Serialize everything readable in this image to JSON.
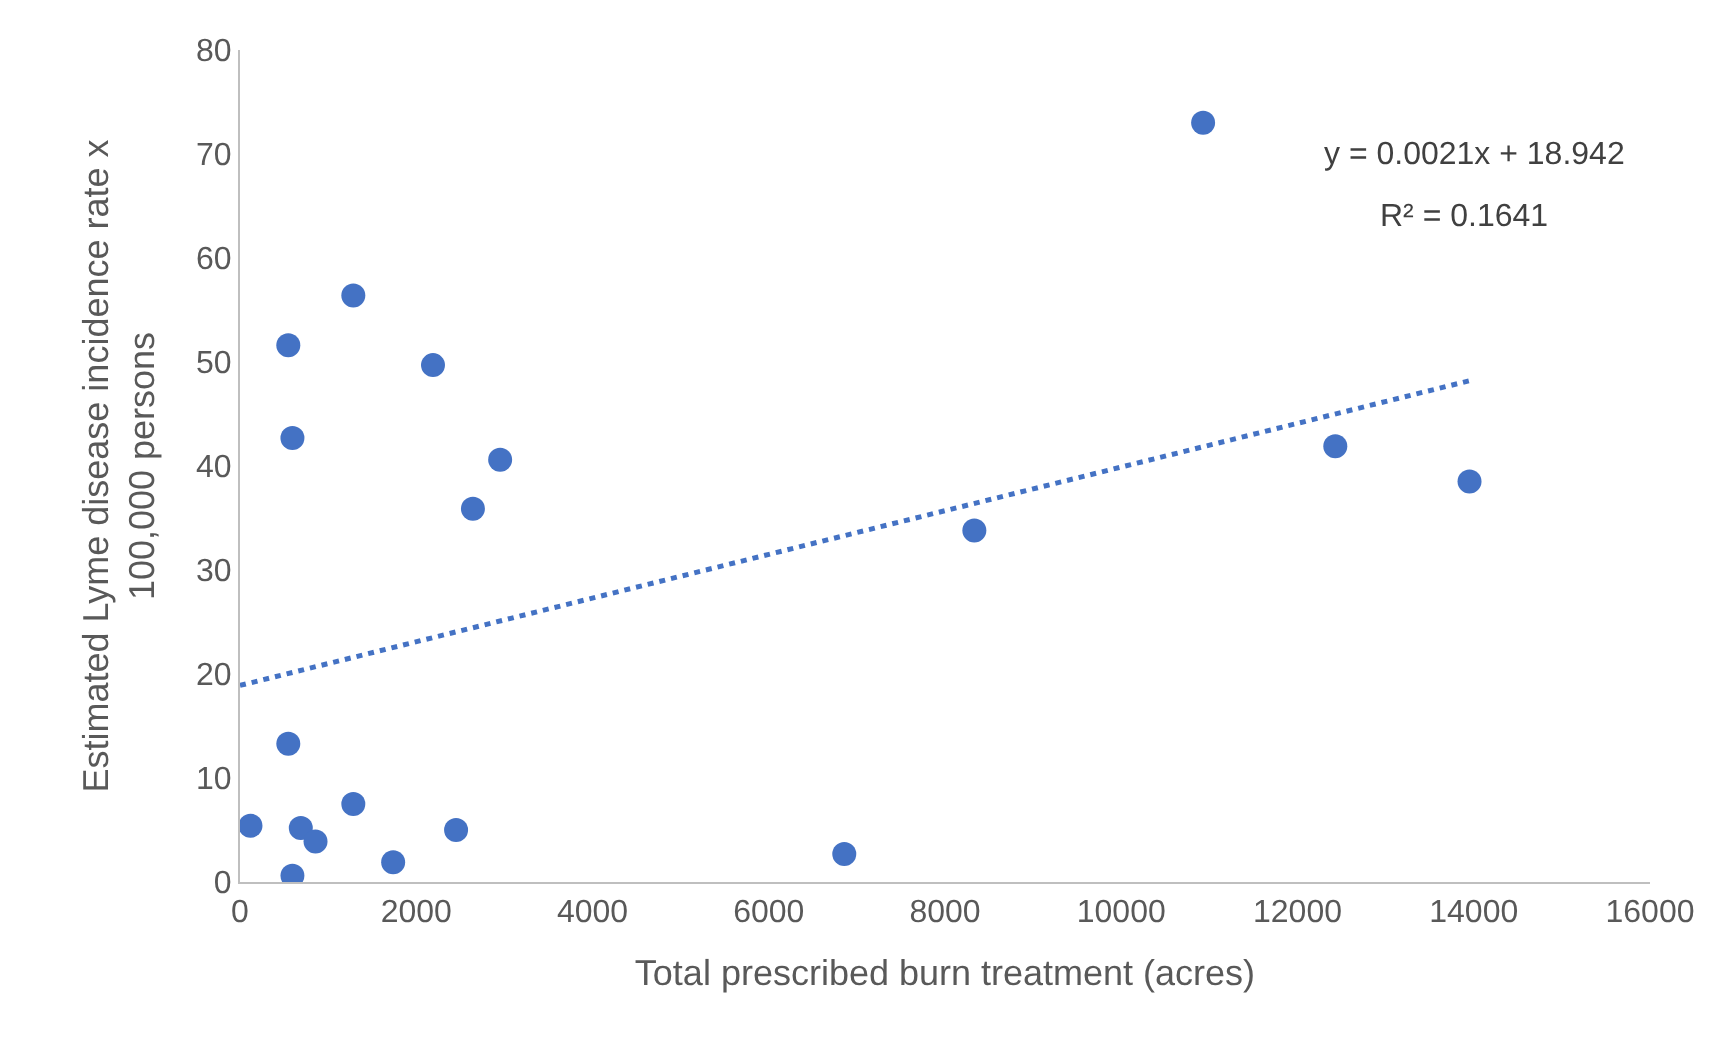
{
  "chart_data": {
    "type": "scatter",
    "xlabel": "Total prescribed burn treatment (acres)",
    "ylabel": "Estimated Lyme disease incidence rate x 100,000 persons",
    "annotations": [
      "y = 0.0021x + 18.942",
      "R² = 0.1641"
    ],
    "x": [
      119,
      595,
      548,
      595,
      548,
      690,
      857,
      1286,
      1286,
      1738,
      2190,
      2452,
      2643,
      2952,
      6857,
      8333,
      10929,
      12429,
      13952
    ],
    "series": [
      {
        "color": "#4472c4",
        "values": [
          5.4,
          0.6,
          51.6,
          42.7,
          13.3,
          5.2,
          3.9,
          56.4,
          7.5,
          1.9,
          49.7,
          5.0,
          35.9,
          40.6,
          2.7,
          33.8,
          73.0,
          41.9,
          38.5
        ]
      },
      {
        "type": "line",
        "color": "#4472c4",
        "line_style": "dotted",
        "marker": "none",
        "x": [
          0,
          13952
        ],
        "values": [
          18.9,
          48.2
        ]
      }
    ],
    "marker": "circle",
    "xlim": [
      0,
      16000
    ],
    "xticks": [
      0,
      2000,
      4000,
      6000,
      8000,
      10000,
      12000,
      14000,
      16000
    ],
    "ylim": [
      0,
      80
    ],
    "yticks": [
      0,
      10,
      20,
      30,
      40,
      50,
      60,
      70,
      80
    ]
  }
}
